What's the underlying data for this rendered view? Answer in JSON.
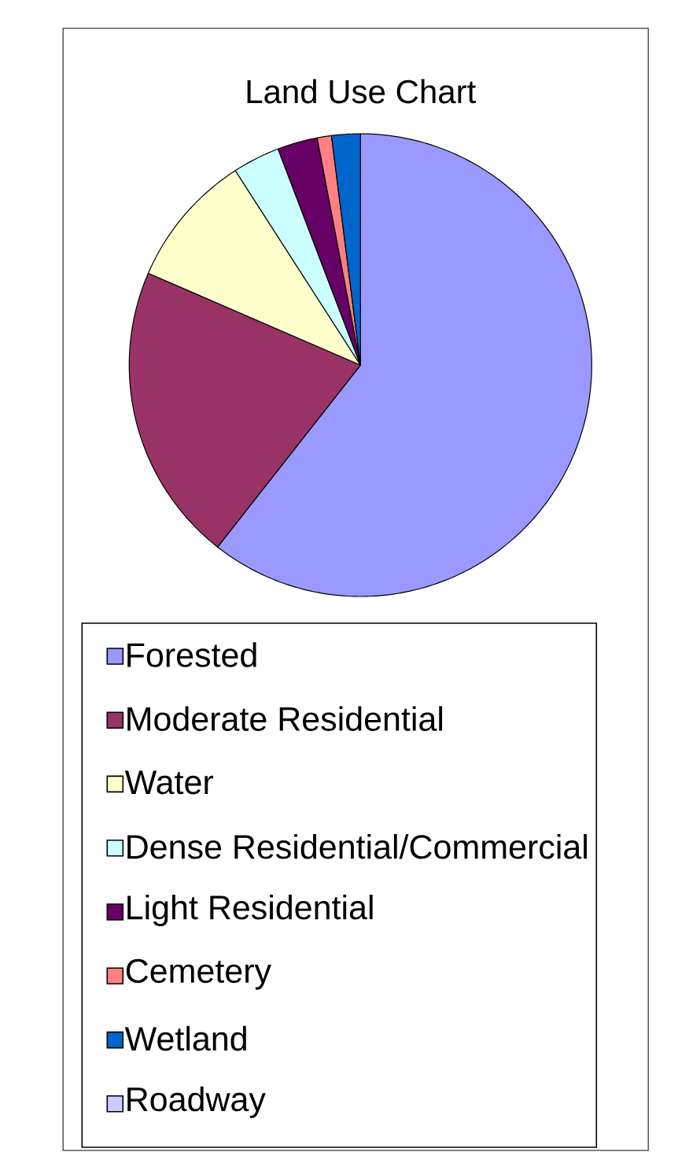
{
  "chart_data": {
    "type": "pie",
    "title": "Land Use Chart",
    "categories": [
      "Forested",
      "Moderate Residential",
      "Water",
      "Dense Residential/Commercial",
      "Light Residential",
      "Cemetery",
      "Wetland",
      "Roadway"
    ],
    "values": [
      60.6,
      20.9,
      9.4,
      3.3,
      2.8,
      1.0,
      2.0,
      0
    ],
    "colors": [
      "#9999ff",
      "#993366",
      "#ffffcc",
      "#ccffff",
      "#660066",
      "#ff8080",
      "#0066cc",
      "#ccccff"
    ],
    "legend": "bottom"
  }
}
